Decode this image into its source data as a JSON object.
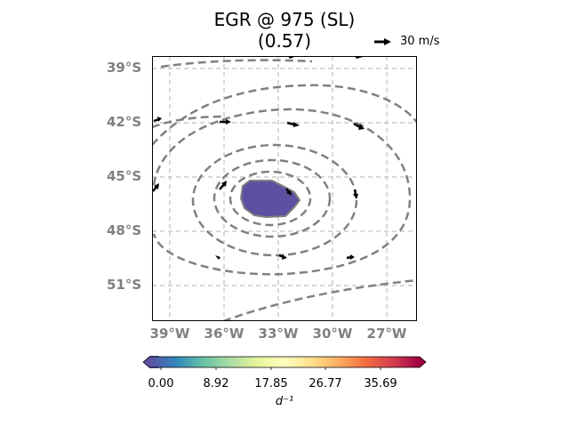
{
  "title": {
    "main": "EGR @ 975 (SL)",
    "sub": "(0.57)"
  },
  "quiver_key": {
    "label": "30 m/s"
  },
  "map": {
    "lat_labels": [
      "39°S",
      "42°S",
      "45°S",
      "48°S",
      "51°S"
    ],
    "lon_labels": [
      "39°W",
      "36°W",
      "33°W",
      "30°W",
      "27°W"
    ],
    "extent": {
      "lon": [
        -40,
        -25.5
      ],
      "lat": [
        -52.5,
        -38
      ]
    },
    "grid": true,
    "colors": {
      "contour": "#808080",
      "blob": "#5e4fa2",
      "grid": "#b0b0b0",
      "tick_labels": "#808080"
    }
  },
  "colorbar": {
    "ticks": [
      "0.00",
      "8.92",
      "17.85",
      "26.77",
      "35.69"
    ],
    "unit_label": "d⁻¹",
    "colormap": "Spectral_r",
    "range": [
      0,
      44.6
    ]
  }
}
